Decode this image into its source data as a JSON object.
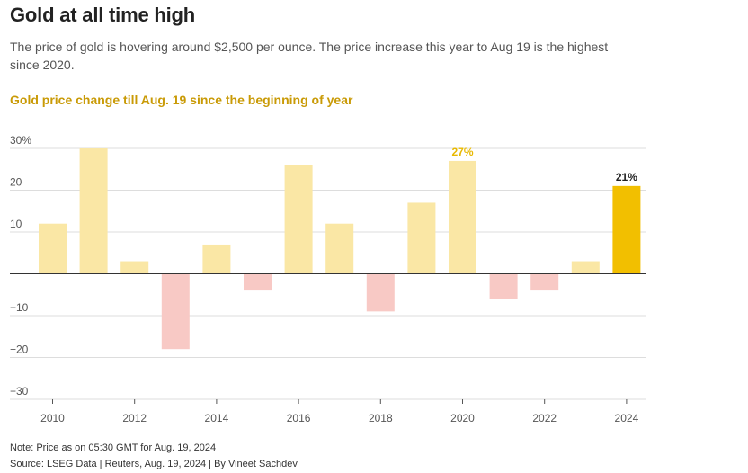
{
  "header": {
    "title": "Gold at all time high",
    "subtitle": "The price of gold is hovering around $2,500 per ounce. The price increase this year to Aug 19 is the highest since 2020.",
    "chart_title": "Gold price change till Aug. 19 since the beginning of year"
  },
  "footer": {
    "note": "Note: Price as on 05:30 GMT for Aug. 19, 2024",
    "source": "Source: LSEG Data | Reuters, Aug. 19, 2024 | By Vineet Sachdev"
  },
  "colors": {
    "positive": "#fae7a5",
    "negative": "#f8c9c5",
    "highlight": "#f2bf00",
    "label_highlight_2020": "#e8b800",
    "label_highlight_2024": "#222222",
    "grid": "#dddddd",
    "zero_line": "#333333"
  },
  "chart_data": {
    "type": "bar",
    "title": "Gold price change till Aug. 19 since the beginning of year",
    "xlabel": "",
    "ylabel": "",
    "categories": [
      "2010",
      "2011",
      "2012",
      "2013",
      "2014",
      "2015",
      "2016",
      "2017",
      "2018",
      "2019",
      "2020",
      "2021",
      "2022",
      "2023",
      "2024"
    ],
    "values": [
      12,
      30,
      3,
      -18,
      7,
      -4,
      26,
      12,
      -9,
      17,
      27,
      -6,
      -4,
      3,
      21
    ],
    "ylim": [
      -30,
      30
    ],
    "y_ticks": [
      30,
      20,
      10,
      -10,
      -20,
      -30
    ],
    "y_tick_labels": [
      "30%",
      "20",
      "10",
      "−10",
      "−20",
      "−30"
    ],
    "x_ticks": [
      "2010",
      "2012",
      "2014",
      "2016",
      "2018",
      "2020",
      "2022",
      "2024"
    ],
    "data_labels": [
      {
        "category": "2020",
        "text": "27%"
      },
      {
        "category": "2024",
        "text": "21%"
      }
    ],
    "highlight_category": "2024",
    "grid": true,
    "legend": "none"
  }
}
